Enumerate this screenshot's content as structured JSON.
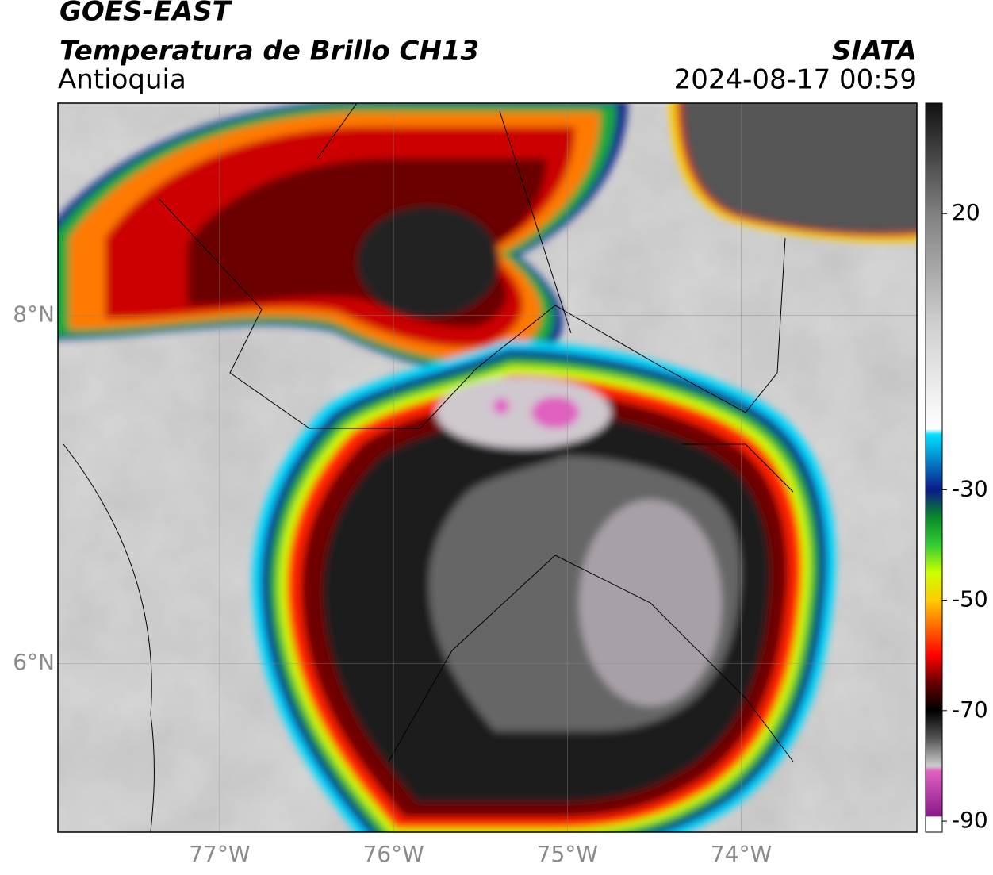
{
  "header": {
    "satellite": "GOES-EAST",
    "product": "Temperatura de Brillo CH13",
    "region": "Antioquia",
    "source": "SIATA",
    "datetime": "2024-08-17 00:59"
  },
  "map": {
    "lon_range": [
      -77.93,
      -72.99
    ],
    "lat_range": [
      5.03,
      9.22
    ],
    "lon_ticks": [
      {
        "value": -77,
        "label": "77°W"
      },
      {
        "value": -76,
        "label": "76°W"
      },
      {
        "value": -75,
        "label": "75°W"
      },
      {
        "value": -74,
        "label": "74°W"
      }
    ],
    "lat_ticks": [
      {
        "value": 8,
        "label": "8°N"
      },
      {
        "value": 6,
        "label": "6°N"
      }
    ]
  },
  "colorbar": {
    "range": [
      -92,
      40
    ],
    "ticks": [
      20,
      -30,
      -50,
      -70,
      -90
    ],
    "colormap": [
      {
        "value": 40,
        "color": "#111111"
      },
      {
        "value": 20,
        "color": "#808080"
      },
      {
        "value": 0,
        "color": "#cfcfcf"
      },
      {
        "value": -19,
        "color": "#ffffff"
      },
      {
        "value": -20,
        "color": "#00e0ff"
      },
      {
        "value": -30,
        "color": "#0a1a8a"
      },
      {
        "value": -35,
        "color": "#0a8a2a"
      },
      {
        "value": -40,
        "color": "#33cc33"
      },
      {
        "value": -45,
        "color": "#ccff00"
      },
      {
        "value": -50,
        "color": "#ffcc00"
      },
      {
        "value": -55,
        "color": "#ff6600"
      },
      {
        "value": -60,
        "color": "#ff0000"
      },
      {
        "value": -65,
        "color": "#660000"
      },
      {
        "value": -70,
        "color": "#000000"
      },
      {
        "value": -75,
        "color": "#555555"
      },
      {
        "value": -80,
        "color": "#cccccc"
      },
      {
        "value": -81,
        "color": "#e060c0"
      },
      {
        "value": -89,
        "color": "#8a1a8a"
      },
      {
        "value": -89.3,
        "color": "#ffffff"
      }
    ]
  }
}
